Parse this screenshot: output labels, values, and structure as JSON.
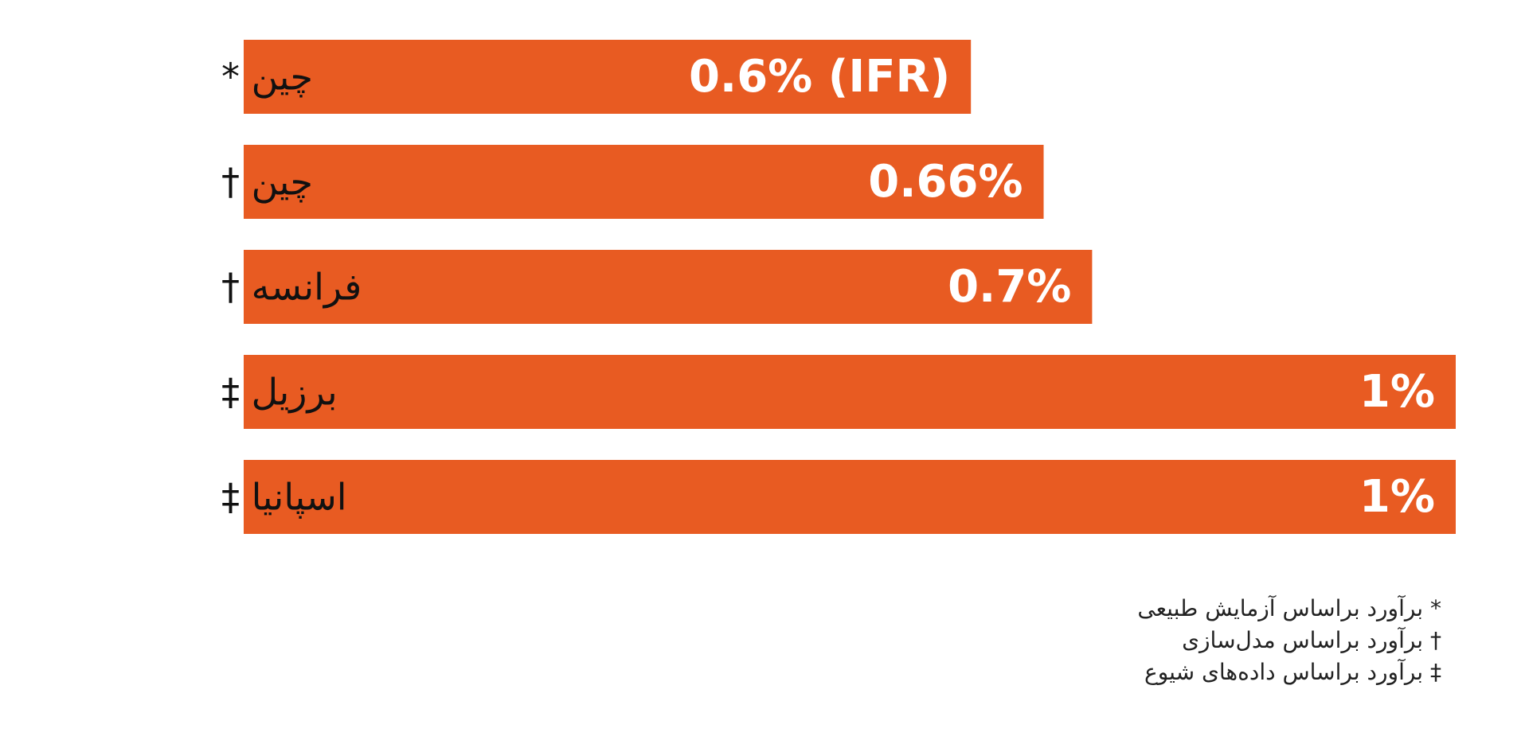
{
  "chart_data": {
    "type": "bar",
    "orientation": "horizontal",
    "categories": [
      "چین *",
      "چین †",
      "فرانسه †",
      "برزیل ‡",
      "اسپانیا ‡"
    ],
    "values": [
      0.6,
      0.66,
      0.7,
      1,
      1
    ],
    "value_labels": [
      "0.6% (IFR)",
      "0.66%",
      "0.7%",
      "1%",
      "1%"
    ],
    "xlim": [
      0,
      1
    ],
    "grid": false,
    "legend_position": "bottom-right"
  },
  "legend": {
    "items": [
      "* برآورد براساس آزمایش طبیعی",
      "† برآورد براساس مدل‌سازی",
      "‡ برآورد براساس داده‌های شیوع"
    ]
  },
  "colors": {
    "bar": "#e85b22",
    "value_text": "#ffffff",
    "category_text": "#111111"
  }
}
